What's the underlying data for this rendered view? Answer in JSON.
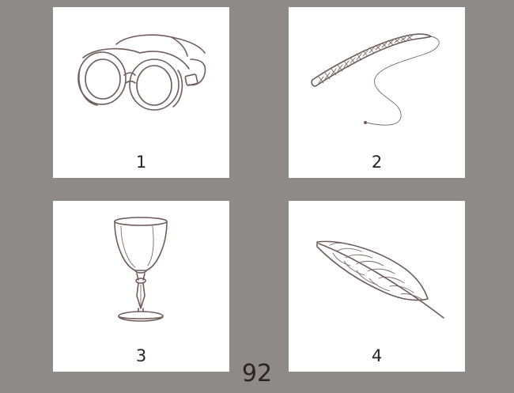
{
  "cards": [
    {
      "number": "1",
      "icon": "goggles-icon"
    },
    {
      "number": "2",
      "icon": "whip-icon"
    },
    {
      "number": "3",
      "icon": "wine-glass-icon"
    },
    {
      "number": "4",
      "icon": "feather-icon"
    }
  ],
  "page_number": "92",
  "colors": {
    "background": "#8d8a87",
    "card": "#ffffff",
    "ink": "#6e5d5a",
    "text": "#2a2424"
  }
}
